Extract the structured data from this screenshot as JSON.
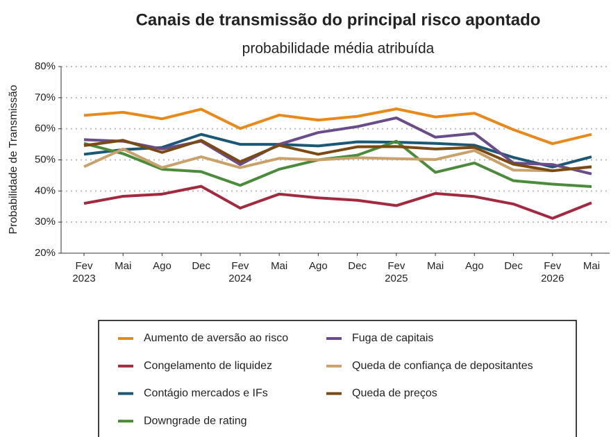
{
  "chart_data": {
    "type": "line",
    "title": "Canais de transmissão do principal risco apontado",
    "subtitle": "probabilidade média atribuída",
    "y_label": "Probabilidade de Transmissão",
    "categories": [
      "Fev",
      "Mai",
      "Ago",
      "Dec",
      "Fev",
      "Mai",
      "Ago",
      "Dec",
      "Fev",
      "Mai",
      "Ago",
      "Dec",
      "Fev",
      "Mai"
    ],
    "category_years": [
      "2023",
      null,
      null,
      null,
      "2024",
      null,
      null,
      null,
      "2025",
      null,
      null,
      null,
      "2026",
      null
    ],
    "ylim": [
      20,
      80
    ],
    "yticks": [
      {
        "value": 20,
        "label": "20%"
      },
      {
        "value": 30,
        "label": "30%"
      },
      {
        "value": 40,
        "label": "40%"
      },
      {
        "value": 50,
        "label": "50%"
      },
      {
        "value": 60,
        "label": "60%"
      },
      {
        "value": 70,
        "label": "70%"
      },
      {
        "value": 80,
        "label": "80%"
      }
    ],
    "grid": true,
    "series": [
      {
        "name": "Aumento de aversão ao risco",
        "color": "#e8891c",
        "values": [
          64.3,
          65.3,
          63.2,
          66.3,
          60.1,
          64.4,
          62.8,
          64.0,
          66.4,
          63.8,
          65.0,
          59.7,
          55.2,
          58.2
        ]
      },
      {
        "name": "Congelamento de liquidez",
        "color": "#a3293f",
        "values": [
          36.0,
          38.3,
          39.0,
          41.5,
          34.5,
          39.0,
          37.8,
          37.0,
          35.3,
          39.2,
          38.2,
          35.8,
          31.2,
          36.2
        ]
      },
      {
        "name": "Contágio mercados e IFs",
        "color": "#1b5876",
        "values": [
          51.8,
          53.3,
          54.0,
          58.2,
          55.0,
          55.0,
          54.5,
          55.8,
          55.7,
          55.3,
          54.7,
          50.8,
          47.7,
          51.0
        ]
      },
      {
        "name": "Downgrade de rating",
        "color": "#4a8c3c",
        "values": [
          55.3,
          52.0,
          47.0,
          46.2,
          41.8,
          47.0,
          50.0,
          51.5,
          56.0,
          46.0,
          49.0,
          43.3,
          42.2,
          41.4
        ]
      },
      {
        "name": "Fuga de capitais",
        "color": "#6b4c8a",
        "values": [
          56.5,
          56.0,
          53.5,
          56.0,
          48.5,
          55.0,
          58.8,
          60.7,
          63.5,
          57.3,
          58.5,
          49.0,
          48.5,
          45.5
        ]
      },
      {
        "name": "Queda de confiança de depositantes",
        "color": "#c9a26b",
        "values": [
          47.8,
          53.5,
          47.5,
          51.0,
          47.5,
          50.5,
          50.0,
          50.7,
          50.4,
          50.1,
          53.0,
          46.7,
          46.5,
          47.7
        ]
      },
      {
        "name": "Queda de preços",
        "color": "#7a4a12",
        "values": [
          54.6,
          56.3,
          52.4,
          56.3,
          49.4,
          54.7,
          51.8,
          54.2,
          54.3,
          53.5,
          54.0,
          48.6,
          46.5,
          47.8
        ]
      }
    ]
  }
}
